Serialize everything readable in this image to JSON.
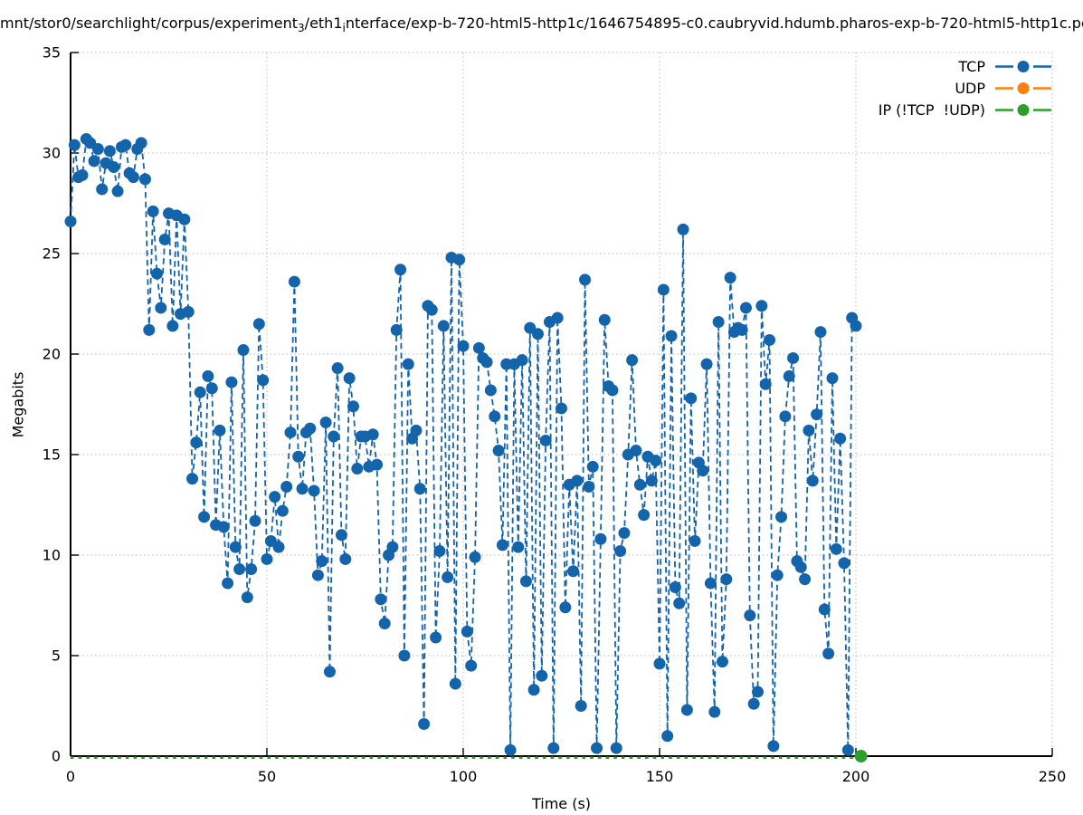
{
  "title": {
    "parts": [
      {
        "text": "mnt/stor0/searchlight/corpus/experiment"
      },
      {
        "text": "3",
        "sub": true
      },
      {
        "text": "/eth1"
      },
      {
        "text": "i",
        "sub": true
      },
      {
        "text": "nterface/exp-b-720-html5-http1c/1646754895-c0.caubryvid.hdumb.pharos-exp-b-720-html5-http1c.pc"
      }
    ]
  },
  "chart_data": {
    "type": "line",
    "title": "mnt/stor0/searchlight/corpus/experiment_3/eth1_interface/exp-b-720-html5-http1c/1646754895-c0.caubryvid.hdumb.pharos-exp-b-720-html5-http1c.pc",
    "xlabel": "Time (s)",
    "ylabel": "Megabits",
    "xlim": [
      0,
      250
    ],
    "ylim": [
      0,
      35
    ],
    "xticks": [
      0,
      50,
      100,
      150,
      200,
      250
    ],
    "yticks": [
      0,
      5,
      10,
      15,
      20,
      25,
      30,
      35
    ],
    "grid": true,
    "legend_position": "top-right-inside",
    "grid_color": "#bbbbbb",
    "series": [
      {
        "name": "TCP",
        "color": "#1464ac",
        "marker": "circle",
        "line_style": "dashed",
        "x_start": 0,
        "x_step": 1,
        "values": [
          26.6,
          30.4,
          28.8,
          28.9,
          30.7,
          30.5,
          29.6,
          30.2,
          28.2,
          29.5,
          30.1,
          29.3,
          28.1,
          30.3,
          30.4,
          29.0,
          28.8,
          30.2,
          30.5,
          28.7,
          21.2,
          27.1,
          24.0,
          22.3,
          25.7,
          27.0,
          21.4,
          26.9,
          22.0,
          26.7,
          22.1,
          13.8,
          15.6,
          18.1,
          11.9,
          18.9,
          18.3,
          11.5,
          16.2,
          11.4,
          8.6,
          18.6,
          10.4,
          9.3,
          20.2,
          7.9,
          9.3,
          11.7,
          21.5,
          18.7,
          9.8,
          10.7,
          12.9,
          10.4,
          12.2,
          13.4,
          16.1,
          23.6,
          14.9,
          13.3,
          16.1,
          16.3,
          13.2,
          9.0,
          9.7,
          16.6,
          4.2,
          15.9,
          19.3,
          11.0,
          9.8,
          18.8,
          17.4,
          14.3,
          15.9,
          15.9,
          14.4,
          16.0,
          14.5,
          7.8,
          6.6,
          10.0,
          10.4,
          21.2,
          24.2,
          5.0,
          19.5,
          15.8,
          16.2,
          13.3,
          1.6,
          22.4,
          22.2,
          5.9,
          10.2,
          21.4,
          8.9,
          24.8,
          3.6,
          24.7,
          20.4,
          6.2,
          4.5,
          9.9,
          20.3,
          19.8,
          19.6,
          18.2,
          16.9,
          15.2,
          10.5,
          19.5,
          0.3,
          19.5,
          10.4,
          19.7,
          8.7,
          21.3,
          3.3,
          21.0,
          4.0,
          15.7,
          21.6,
          0.4,
          21.8,
          17.3,
          7.4,
          13.5,
          9.2,
          13.7,
          2.5,
          23.7,
          13.4,
          14.4,
          0.4,
          10.8,
          21.7,
          18.4,
          18.2,
          0.4,
          10.2,
          11.1,
          15.0,
          19.7,
          15.2,
          13.5,
          12.0,
          14.9,
          13.7,
          14.7,
          4.6,
          23.2,
          1.0,
          20.9,
          8.4,
          7.6,
          26.2,
          2.3,
          17.8,
          10.7,
          14.6,
          14.2,
          19.5,
          8.6,
          2.2,
          21.6,
          4.7,
          8.8,
          23.8,
          21.1,
          21.3,
          21.2,
          22.3,
          7.0,
          2.6,
          3.2,
          22.4,
          18.5,
          20.7,
          0.5,
          9.0,
          11.9,
          16.9,
          18.9,
          19.8,
          9.7,
          9.4,
          8.8,
          16.2,
          13.7,
          17.0,
          21.1,
          7.3,
          5.1,
          18.8,
          10.3,
          15.8,
          9.6,
          0.3,
          21.8,
          21.4
        ]
      },
      {
        "name": "UDP",
        "color": "#ff7f0e",
        "marker": "circle",
        "line_style": "dashed",
        "constant_value": 0,
        "x_range": [
          0,
          202
        ],
        "marker_points": []
      },
      {
        "name": "IP (!TCP  !UDP)",
        "color": "#2ca02c",
        "marker": "circle",
        "line_style": "dashed",
        "constant_value": 0,
        "x_range": [
          0,
          202
        ],
        "marker_points": [
          [
            201.3,
            0
          ]
        ]
      }
    ]
  }
}
